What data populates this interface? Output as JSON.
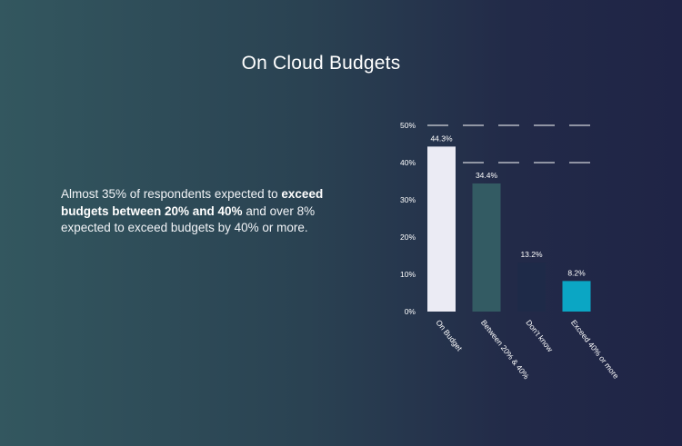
{
  "title": "On Cloud Budgets",
  "description": {
    "part1": "Almost 35% of respondents expected to ",
    "bold": "exceed budgets between 20% and 40%",
    "part2": " and over 8% expected to exceed budgets by 40% or more."
  },
  "chart_data": {
    "type": "bar",
    "categories": [
      "On Budget",
      "Between 20% & 40%",
      "Don't know",
      "Exceed 40% or more"
    ],
    "values": [
      44.3,
      34.4,
      13.2,
      8.2
    ],
    "value_labels": [
      "44.3%",
      "34.4%",
      "13.2%",
      "8.2%"
    ],
    "colors": [
      "#ebebf4",
      "#335b63",
      "#1e2a48",
      "#0ba6c4"
    ],
    "ylim": [
      0,
      50
    ],
    "yticks": [
      0,
      10,
      20,
      30,
      40,
      50
    ],
    "ytick_labels": [
      "0%",
      "10%",
      "20%",
      "30%",
      "40%",
      "50%"
    ],
    "grid": "dashed at 40% and 50%",
    "title": "",
    "xlabel": "",
    "ylabel": ""
  }
}
